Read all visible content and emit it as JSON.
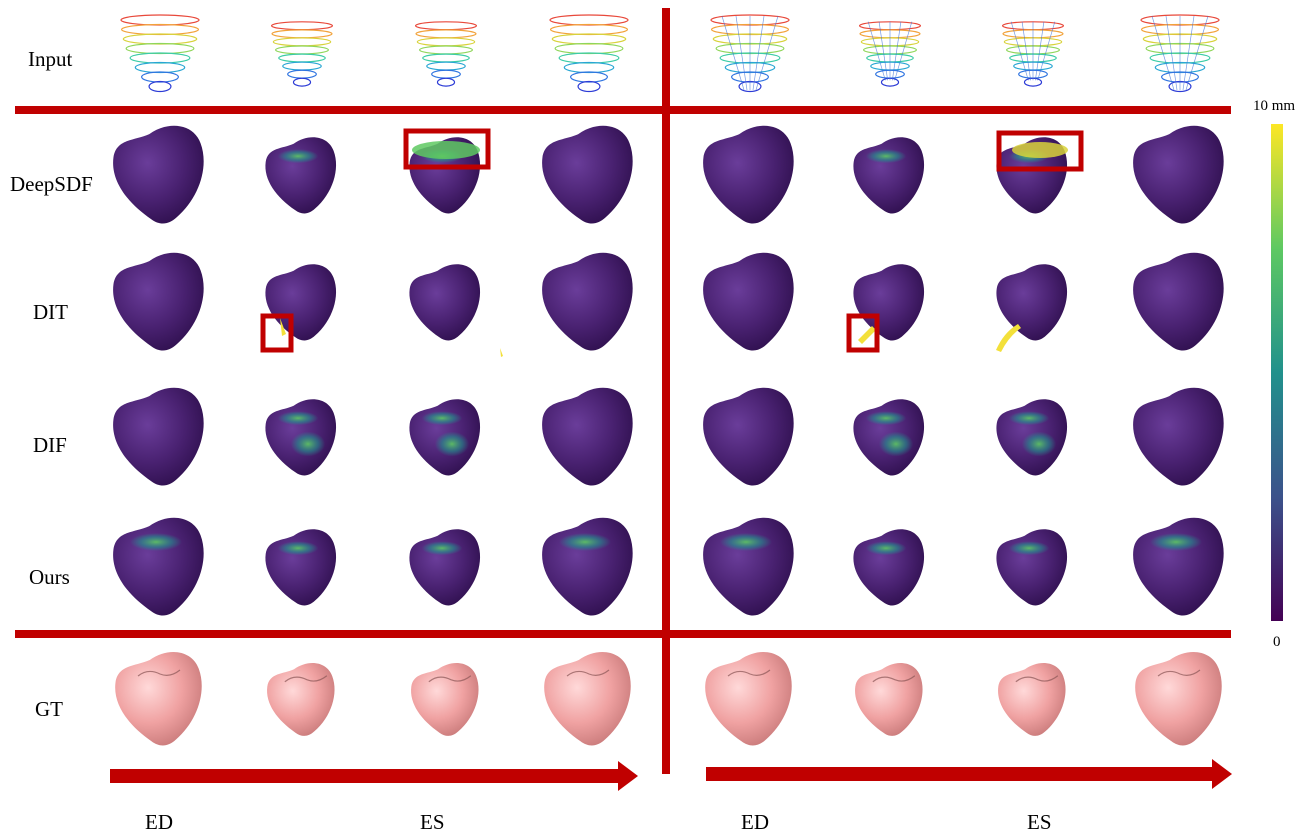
{
  "rows": [
    {
      "label": "Input",
      "kind": "contour"
    },
    {
      "label": "DeepSDF",
      "kind": "error"
    },
    {
      "label": "DIT",
      "kind": "error"
    },
    {
      "label": "DIF",
      "kind": "error"
    },
    {
      "label": "Ours",
      "kind": "error"
    },
    {
      "label": "GT",
      "kind": "gt"
    }
  ],
  "columns_per_group": 4,
  "phase_labels": [
    {
      "text": "ED"
    },
    {
      "text": "ES"
    },
    {
      "text": "ED"
    },
    {
      "text": "ES"
    }
  ],
  "colorbar": {
    "max_label": "10 mm",
    "min_label": "0",
    "colors": [
      "#fde725",
      "#5ec962",
      "#21918c",
      "#3b528b",
      "#440154"
    ]
  },
  "colors": {
    "accent_red": "#c00000",
    "surface_purple": "#46206e",
    "gt_pink": "#f1a3a3"
  },
  "highlights": [
    {
      "row": "DeepSDF",
      "column": 3,
      "note": "artifact"
    },
    {
      "row": "DeepSDF",
      "column": 7,
      "note": "artifact"
    },
    {
      "row": "DIT",
      "column": 2,
      "note": "artifact"
    },
    {
      "row": "DIT",
      "column": 6,
      "note": "artifact"
    }
  ]
}
